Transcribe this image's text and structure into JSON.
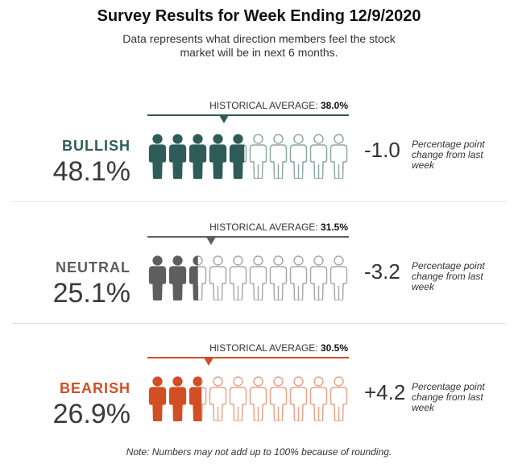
{
  "header": {
    "title": "Survey Results for Week Ending 12/9/2020",
    "subtitle": "Data represents what direction members feel the stock market will be in next 6 months."
  },
  "chart_data": {
    "type": "pictograph",
    "title": "Survey Results for Week Ending 12/9/2020",
    "icons_per_row": 10,
    "historical_label": "HISTORICAL AVERAGE:",
    "categories": [
      {
        "name": "BULLISH",
        "value": 48.1,
        "value_label": "48.1%",
        "historical_average": 38.0,
        "historical_label_value": "38.0%",
        "change": -1.0,
        "change_label": "-1.0",
        "change_note": "Percentage point change from last week",
        "color": "#2f5c58",
        "outline_color": "#8fa8a6"
      },
      {
        "name": "NEUTRAL",
        "value": 25.1,
        "value_label": "25.1%",
        "historical_average": 31.5,
        "historical_label_value": "31.5%",
        "change": -3.2,
        "change_label": "-3.2",
        "change_note": "Percentage point change from last week",
        "color": "#5e5e5e",
        "outline_color": "#a9a9a9"
      },
      {
        "name": "BEARISH",
        "value": 26.9,
        "value_label": "26.9%",
        "historical_average": 30.5,
        "historical_label_value": "30.5%",
        "change": 4.2,
        "change_label": "+4.2",
        "change_note": "Percentage point change from last week",
        "color": "#d24e24",
        "outline_color": "#e8a48c"
      }
    ]
  },
  "footer": {
    "note": "Note: Numbers may not add up to 100% because of rounding."
  }
}
